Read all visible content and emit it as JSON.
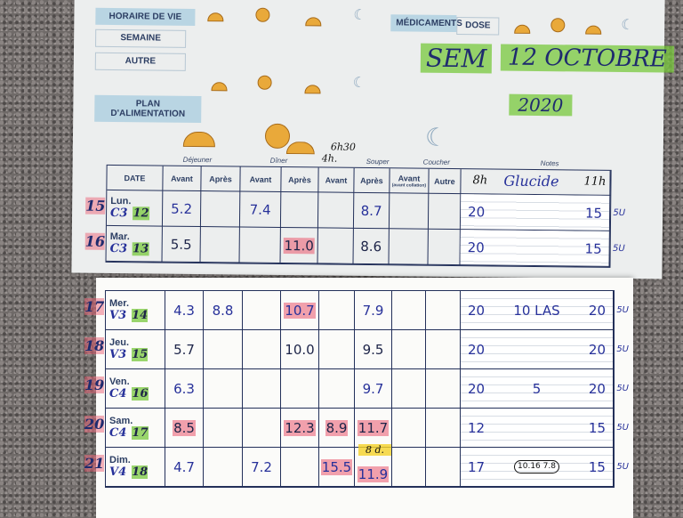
{
  "top_page": {
    "labels": {
      "horaire": "HORAIRE DE VIE",
      "semaine": "SEMAINE",
      "autre": "AUTRE",
      "plan": "PLAN D'ALIMENTATION",
      "medicaments": "MÉDICAMENTS",
      "dose": "DOSE"
    },
    "handwritten": {
      "sem": "SEM",
      "date": "12 OCTOBRE",
      "year": "2020"
    },
    "meals": [
      "Déjeuner",
      "Dîner",
      "Souper",
      "Coucher",
      "Notes"
    ],
    "columns": [
      "DATE",
      "Avant",
      "Après",
      "Avant",
      "Après",
      "Avant",
      "Après",
      "Avant",
      "Autre"
    ],
    "coucher_note": "(avant collation)",
    "header_notes": {
      "souper_avant": "4h.",
      "souper_apres": "6h30",
      "notes_left": "8h",
      "notes_right": "11h",
      "glucide": "Glucide"
    },
    "rows": [
      {
        "num": "15",
        "day": "Lun.",
        "code": "C3",
        "date": "12",
        "values": [
          "5.2",
          "",
          "7.4",
          "",
          "",
          "8.7",
          "",
          ""
        ],
        "red": [],
        "notes": [
          "20",
          "",
          "15"
        ],
        "side": "5U"
      },
      {
        "num": "16",
        "day": "Mar.",
        "code": "C3",
        "date": "13",
        "values": [
          "5.5",
          "",
          "",
          "11.0",
          "",
          "8.6",
          "",
          ""
        ],
        "red": [
          3
        ],
        "notes": [
          "20",
          "",
          "15"
        ],
        "side": "5U"
      }
    ]
  },
  "bottom_page": {
    "rows": [
      {
        "num": "17",
        "day": "Mer.",
        "code": "V3",
        "date": "14",
        "values": [
          "4.3",
          "8.8",
          "",
          "10.7",
          "",
          "7.9",
          "",
          ""
        ],
        "red": [
          3
        ],
        "notes": [
          "20",
          "10 LAS",
          "20"
        ],
        "side": "5U"
      },
      {
        "num": "18",
        "day": "Jeu.",
        "code": "V3",
        "date": "15",
        "values": [
          "5.7",
          "",
          "",
          "10.0",
          "",
          "9.5",
          "",
          ""
        ],
        "red": [],
        "notes": [
          "20",
          "",
          "20"
        ],
        "side": "5U"
      },
      {
        "num": "19",
        "day": "Ven.",
        "code": "C4",
        "date": "16",
        "values": [
          "6.3",
          "",
          "",
          "",
          "",
          "9.7",
          "",
          ""
        ],
        "red": [],
        "notes": [
          "20",
          "5",
          "20"
        ],
        "side": "5U"
      },
      {
        "num": "20",
        "day": "Sam.",
        "code": "C4",
        "date": "17",
        "values": [
          "8.5",
          "",
          "",
          "12.3",
          "8.9",
          "11.7",
          "",
          ""
        ],
        "red": [
          0,
          3,
          4,
          5
        ],
        "notes": [
          "12",
          "",
          "15"
        ],
        "side": "5U"
      },
      {
        "num": "21",
        "day": "Dim.",
        "code": "V4",
        "date": "18",
        "values": [
          "4.7",
          "",
          "7.2",
          "",
          "15.5",
          "11.9",
          "",
          ""
        ],
        "red": [
          4,
          5
        ],
        "notes": [
          "17",
          "10.16 7.8",
          "15"
        ],
        "side": "5U",
        "annotation": "8 d."
      }
    ]
  },
  "colors": {
    "highlight_green": "#78c83c",
    "highlight_red": "#eb6478",
    "highlight_yellow": "#f5d228",
    "ink_blue": "#27319a",
    "ink_black": "#1d2448",
    "label_blue": "#b9d5e3"
  }
}
